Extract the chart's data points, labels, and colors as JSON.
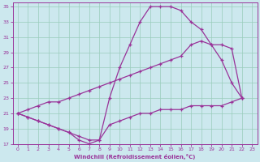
{
  "xlabel": "Windchill (Refroidissement éolien,°C)",
  "bg_color": "#cce8ee",
  "grid_color": "#99ccbb",
  "line_color": "#993399",
  "xlim": [
    -0.5,
    23.5
  ],
  "ylim": [
    17,
    35.5
  ],
  "yticks": [
    17,
    19,
    21,
    23,
    25,
    27,
    29,
    31,
    33,
    35
  ],
  "xticks": [
    0,
    1,
    2,
    3,
    4,
    5,
    6,
    7,
    8,
    9,
    10,
    11,
    12,
    13,
    14,
    15,
    16,
    17,
    18,
    19,
    20,
    21,
    22,
    23
  ],
  "line1_x": [
    0,
    1,
    2,
    3,
    4,
    5,
    6,
    7,
    8,
    9,
    10,
    11,
    12,
    13,
    14,
    15,
    16,
    17,
    18,
    19,
    20,
    21,
    22
  ],
  "line1_y": [
    21.0,
    20.5,
    20.0,
    19.5,
    19.0,
    18.5,
    17.5,
    17.0,
    17.5,
    23.0,
    27.0,
    30.0,
    33.0,
    35.0,
    35.0,
    35.0,
    34.5,
    33.0,
    32.0,
    30.0,
    28.0,
    25.0,
    23.0
  ],
  "line2_x": [
    0,
    1,
    2,
    3,
    4,
    5,
    6,
    7,
    8,
    9,
    10,
    11,
    12,
    13,
    14,
    15,
    16,
    17,
    18,
    19,
    20,
    21,
    22
  ],
  "line2_y": [
    21.0,
    21.5,
    22.0,
    22.5,
    22.5,
    23.0,
    23.5,
    24.0,
    24.5,
    25.0,
    25.5,
    26.0,
    26.5,
    27.0,
    27.5,
    28.0,
    28.5,
    30.0,
    30.5,
    30.0,
    30.0,
    29.5,
    23.0
  ],
  "line3_x": [
    0,
    1,
    2,
    3,
    4,
    5,
    6,
    7,
    8,
    9,
    10,
    11,
    12,
    13,
    14,
    15,
    16,
    17,
    18,
    19,
    20,
    21,
    22
  ],
  "line3_y": [
    21.0,
    20.5,
    20.0,
    19.5,
    19.0,
    18.5,
    18.0,
    17.5,
    17.5,
    19.5,
    20.0,
    20.5,
    21.0,
    21.0,
    21.5,
    21.5,
    21.5,
    22.0,
    22.0,
    22.0,
    22.0,
    22.5,
    23.0
  ]
}
